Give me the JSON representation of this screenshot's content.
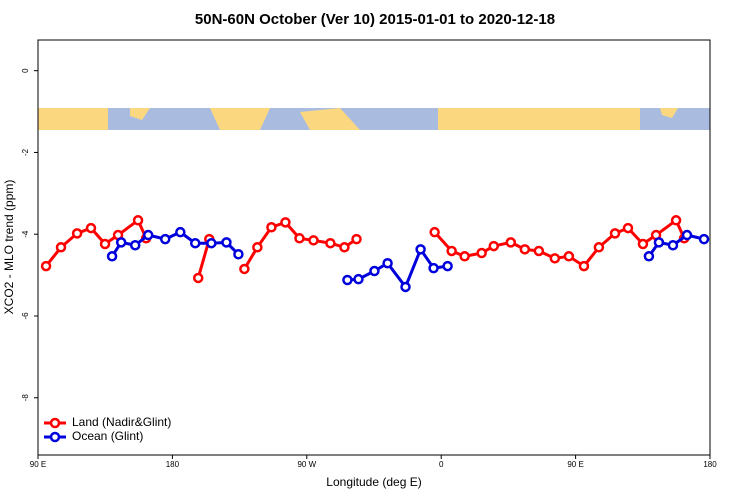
{
  "chart_data": {
    "type": "line",
    "title": "50N-60N October (Ver 10)   2015-01-01 to 2020-12-18",
    "x_label": "Longitude (deg E)",
    "y_label": "XCO2 - MLO trend (ppm)",
    "xlim": [
      90,
      540
    ],
    "ylim": [
      -9.4,
      0.75
    ],
    "xticks": [
      {
        "value": 90,
        "label": "90 E"
      },
      {
        "value": 180,
        "label": "180"
      },
      {
        "value": 270,
        "label": "90 W"
      },
      {
        "value": 360,
        "label": "0"
      },
      {
        "value": 450,
        "label": "90 E"
      },
      {
        "value": 540,
        "label": "180"
      }
    ],
    "yticks": [
      0,
      -2,
      -4,
      -6,
      -8
    ],
    "legend": "bottom-left",
    "series": [
      {
        "name": "Land (Nadir&Glint)",
        "color": "#ff0000",
        "x": [
          95.4,
          105.4,
          116.2,
          125.5,
          134.9,
          143.6,
          157.0,
          162.4,
          null,
          197.3,
          204.7,
          null,
          228.2,
          236.9,
          246.3,
          255.7,
          265.1,
          274.5,
          285.8,
          295.2,
          303.3,
          null,
          355.6,
          367.0,
          375.7,
          387.1,
          395.2,
          406.6,
          416.0,
          425.4,
          436.1,
          445.5,
          455.6,
          465.6,
          476.4,
          485.1,
          495.1,
          503.9,
          517.3,
          522.7
        ],
        "values": [
          -4.78,
          -4.32,
          -3.98,
          -3.85,
          -4.24,
          -4.02,
          -3.66,
          -4.1,
          null,
          -5.07,
          -4.12,
          null,
          -4.85,
          -4.32,
          -3.83,
          -3.71,
          -4.1,
          -4.15,
          -4.22,
          -4.32,
          -4.12,
          null,
          -3.95,
          -4.41,
          -4.54,
          -4.46,
          -4.29,
          -4.2,
          -4.37,
          -4.41,
          -4.59,
          -4.54,
          -4.78,
          -4.32,
          -3.98,
          -3.85,
          -4.24,
          -4.02,
          -3.66,
          -4.1
        ]
      },
      {
        "name": "Ocean (Glint)",
        "color": "#0000dd",
        "x": [
          139.6,
          145.7,
          155.1,
          163.8,
          175.2,
          185.3,
          195.3,
          206.1,
          216.2,
          224.2,
          null,
          297.2,
          304.6,
          315.3,
          324.1,
          336.1,
          346.2,
          354.9,
          364.3,
          null,
          499.1,
          505.8,
          515.2,
          524.6,
          536.0
        ],
        "values": [
          -4.54,
          -4.2,
          -4.27,
          -4.02,
          -4.12,
          -3.95,
          -4.22,
          -4.22,
          -4.2,
          -4.49,
          null,
          -5.12,
          -5.1,
          -4.9,
          -4.71,
          -5.29,
          -4.37,
          -4.83,
          -4.78,
          null,
          -4.54,
          -4.2,
          -4.27,
          -4.02,
          -4.12
        ]
      }
    ]
  }
}
